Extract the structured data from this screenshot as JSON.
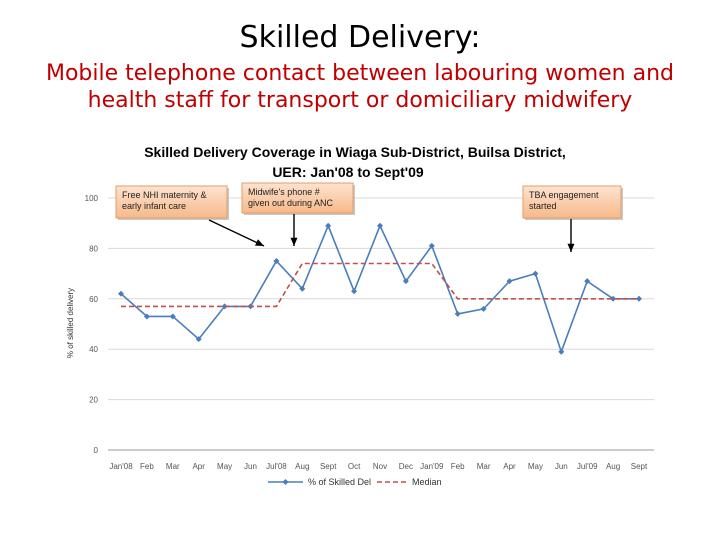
{
  "slide": {
    "title": "Skilled Delivery:",
    "subtitle_line1": "Mobile telephone contact between labouring women and",
    "subtitle_line2": "health staff for transport or domiciliary midwifery"
  },
  "chart_data": {
    "type": "line",
    "title_line1": "Skilled Delivery Coverage in Wiaga Sub-District, Builsa District,",
    "title_line2": "UER: Jan'08 to Sept'09",
    "xlabel": "",
    "ylabel": "% of skilled delivery",
    "ylim": [
      0,
      100
    ],
    "yticks": [
      0,
      20,
      40,
      60,
      80,
      100
    ],
    "grid": true,
    "legend_position": "bottom",
    "categories": [
      "Jan'08",
      "Feb",
      "Mar",
      "Apr",
      "May",
      "Jun",
      "Jul'08",
      "Aug",
      "Sept",
      "Oct",
      "Nov",
      "Dec",
      "Jan'09",
      "Feb",
      "Mar",
      "Apr",
      "May",
      "Jun",
      "Jul'09",
      "Aug",
      "Sept"
    ],
    "series": [
      {
        "name": "% of Skilled Del",
        "style": "solid-marker",
        "color": "#4a7ebb",
        "values": [
          62,
          53,
          53,
          44,
          57,
          57,
          75,
          64,
          89,
          63,
          89,
          67,
          81,
          54,
          56,
          67,
          70,
          39,
          67,
          60,
          60
        ]
      },
      {
        "name": "Median",
        "style": "dashed",
        "color": "#c0504d",
        "values": [
          57,
          57,
          57,
          57,
          57,
          57,
          57,
          74,
          74,
          74,
          74,
          74,
          74,
          60,
          60,
          60,
          60,
          60,
          60,
          60,
          60
        ]
      }
    ],
    "annotations": [
      {
        "lines": [
          "Free NHI maternity  &",
          "early infant care"
        ]
      },
      {
        "lines": [
          "Midwife's phone #",
          "given out during ANC"
        ]
      },
      {
        "lines": [
          "TBA engagement",
          "started"
        ]
      }
    ]
  }
}
